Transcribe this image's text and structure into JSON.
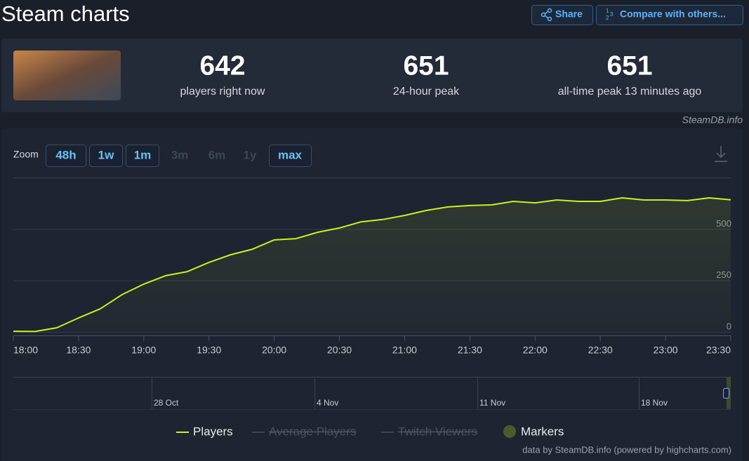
{
  "header": {
    "title": "Steam charts",
    "share": "Share",
    "compare": "Compare with others..."
  },
  "stats": [
    {
      "value": 642,
      "label": "players right now"
    },
    {
      "value": 651,
      "label": "24-hour peak"
    },
    {
      "value": 651,
      "label": "all-time peak 13 minutes ago"
    }
  ],
  "source_note": "SteamDB.info",
  "zoom": {
    "label": "Zoom",
    "options": [
      "48h",
      "1w",
      "1m",
      "3m",
      "6m",
      "1y",
      "max"
    ]
  },
  "chart_data": {
    "type": "line",
    "categories": [
      "18:00",
      null,
      null,
      "18:30",
      null,
      null,
      "19:00",
      null,
      null,
      "19:30",
      null,
      null,
      "20:00",
      null,
      null,
      "20:30",
      null,
      null,
      "21:00",
      null,
      null,
      "21:30",
      null,
      null,
      "22:00",
      null,
      null,
      "22:30",
      null,
      null,
      "23:00",
      null,
      null,
      "23:30"
    ],
    "series": [
      {
        "name": "Players",
        "color": "#c6f41c",
        "values": [
          3,
          2,
          20,
          68,
          112,
          181,
          232,
          273,
          293,
          338,
          375,
          402,
          447,
          453,
          484,
          505,
          535,
          546,
          566,
          590,
          607,
          614,
          617,
          634,
          627,
          641,
          634,
          634,
          651,
          641,
          641,
          638,
          651,
          642
        ]
      }
    ],
    "ylim": [
      0,
      750
    ],
    "yticks": [
      0,
      250,
      500
    ],
    "grid": true,
    "inactive_legend": [
      "Average Players",
      "Twitch Viewers"
    ],
    "markers_label": "Markers",
    "navigator_labels": [
      "28 Oct",
      "4 Nov",
      "11 Nov",
      "18 Nov"
    ],
    "credit": "data by SteamDB.info (powered by highcharts.com)"
  }
}
